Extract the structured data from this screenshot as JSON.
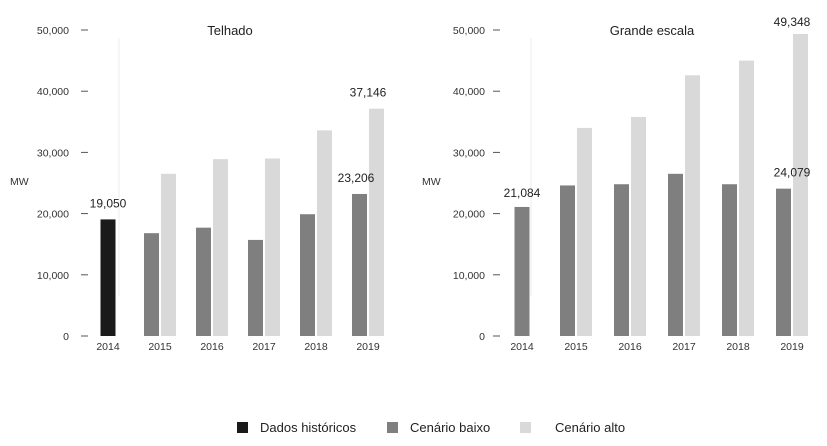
{
  "chart_data": [
    {
      "type": "bar",
      "title": "Telhado",
      "ylabel": "MW",
      "ylim": [
        0,
        50000
      ],
      "yticks": [
        "0",
        "10,000",
        "20,000",
        "30,000",
        "40,000",
        "50,000"
      ],
      "categories": [
        "2014",
        "2015",
        "2016",
        "2017",
        "2018",
        "2019"
      ],
      "series": [
        {
          "name": "Dados históricos",
          "values": [
            19050,
            null,
            null,
            null,
            null,
            null
          ]
        },
        {
          "name": "Cenário baixo",
          "values": [
            null,
            16800,
            17700,
            15700,
            19900,
            23206
          ]
        },
        {
          "name": "Cenário alto",
          "values": [
            null,
            26500,
            28900,
            29000,
            33600,
            37146
          ]
        }
      ],
      "data_labels": [
        {
          "category": "2014",
          "series": "Dados históricos",
          "text": "19,050"
        },
        {
          "category": "2019",
          "series": "Cenário baixo",
          "text": "23,206"
        },
        {
          "category": "2019",
          "series": "Cenário alto",
          "text": "37,146"
        }
      ]
    },
    {
      "type": "bar",
      "title": "Grande escala",
      "ylabel": "MW",
      "ylim": [
        0,
        50000
      ],
      "yticks": [
        "0",
        "10,000",
        "20,000",
        "30,000",
        "40,000",
        "50,000"
      ],
      "categories": [
        "2014",
        "2015",
        "2016",
        "2017",
        "2018",
        "2019"
      ],
      "series": [
        {
          "name": "Dados históricos",
          "values": [
            null,
            null,
            null,
            null,
            null,
            null
          ]
        },
        {
          "name": "Cenário baixo",
          "values": [
            21084,
            24600,
            24800,
            26500,
            24800,
            24079
          ]
        },
        {
          "name": "Cenário alto",
          "values": [
            null,
            34000,
            35800,
            42600,
            45000,
            49348
          ]
        }
      ],
      "data_labels": [
        {
          "category": "2014",
          "series": "Cenário baixo",
          "text": "21,084"
        },
        {
          "category": "2019",
          "series": "Cenário baixo",
          "text": "24,079"
        },
        {
          "category": "2019",
          "series": "Cenário alto",
          "text": "49,348"
        }
      ]
    }
  ],
  "legend": {
    "items": [
      {
        "label": "Dados históricos",
        "color": "#1a1a1a"
      },
      {
        "label": "Cenário baixo",
        "color": "#7f7f7f"
      },
      {
        "label": "Cenário alto",
        "color": "#d9d9d9"
      }
    ]
  },
  "colors": {
    "historic": "#1a1a1a",
    "low": "#7f7f7f",
    "high": "#d9d9d9",
    "axis": "#555555"
  }
}
